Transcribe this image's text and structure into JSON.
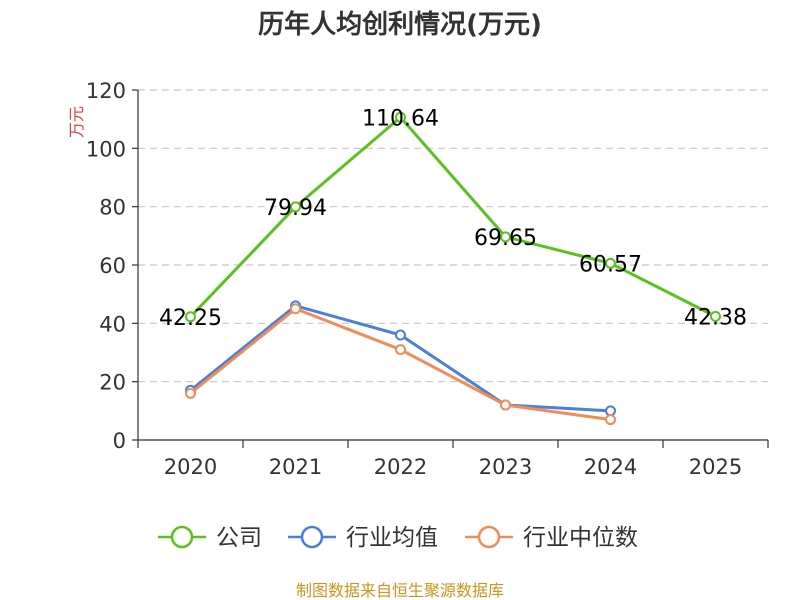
{
  "chart_data": {
    "type": "line",
    "title": "历年人均创利情况(万元)",
    "ylabel": "万元",
    "xlabel": "",
    "categories": [
      "2020",
      "2021",
      "2022",
      "2023",
      "2024",
      "2025"
    ],
    "ylim": [
      0,
      120
    ],
    "yticks": [
      0,
      20,
      40,
      60,
      80,
      100,
      120
    ],
    "grid": true,
    "legend_position": "bottom",
    "series": [
      {
        "name": "公司",
        "color": "#5cc11e",
        "values": [
          42.25,
          79.94,
          110.64,
          69.65,
          60.57,
          42.38
        ],
        "labels": [
          "42.25",
          "79.94",
          "110.64",
          "69.65",
          "60.57",
          "42.38"
        ]
      },
      {
        "name": "行业均值",
        "color": "#4b7fdc",
        "values": [
          17,
          46,
          36,
          12,
          10,
          null
        ]
      },
      {
        "name": "行业中位数",
        "color": "#f08c55",
        "values": [
          16,
          45,
          31,
          12,
          7,
          null
        ]
      }
    ]
  },
  "footer": "制图数据来自恒生聚源数据库"
}
